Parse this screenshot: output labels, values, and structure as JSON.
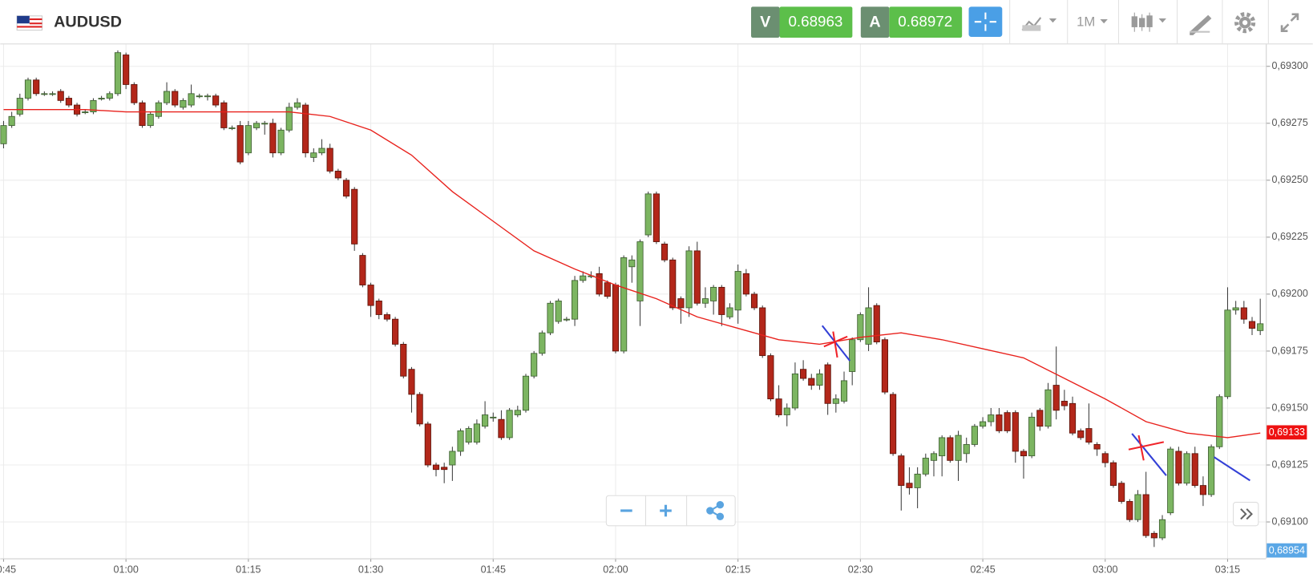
{
  "header": {
    "symbol": "AUDUSD",
    "sell_label": "V",
    "sell_price": "0.68963",
    "buy_label": "A",
    "buy_price": "0.68972",
    "timeframe": "1M"
  },
  "chart_data": {
    "type": "candlestick",
    "x": [
      "00:45",
      "00:46",
      "00:47",
      "00:48",
      "00:49",
      "00:50",
      "00:51",
      "00:52",
      "00:53",
      "00:54",
      "00:55",
      "00:56",
      "00:57",
      "00:58",
      "00:59",
      "01:00",
      "01:01",
      "01:02",
      "01:03",
      "01:04",
      "01:05",
      "01:06",
      "01:07",
      "01:08",
      "01:09",
      "01:10",
      "01:11",
      "01:12",
      "01:13",
      "01:14",
      "01:15",
      "01:16",
      "01:17",
      "01:18",
      "01:19",
      "01:20",
      "01:21",
      "01:22",
      "01:23",
      "01:24",
      "01:25",
      "01:26",
      "01:27",
      "01:28",
      "01:29",
      "01:30",
      "01:31",
      "01:32",
      "01:33",
      "01:34",
      "01:35",
      "01:36",
      "01:37",
      "01:38",
      "01:39",
      "01:40",
      "01:41",
      "01:42",
      "01:43",
      "01:44",
      "01:45",
      "01:46",
      "01:47",
      "01:48",
      "01:49",
      "01:50",
      "01:51",
      "01:52",
      "01:53",
      "01:54",
      "01:55",
      "01:56",
      "01:57",
      "01:58",
      "01:59",
      "02:00",
      "02:01",
      "02:02",
      "02:03",
      "02:04",
      "02:05",
      "02:06",
      "02:07",
      "02:08",
      "02:09",
      "02:10",
      "02:11",
      "02:12",
      "02:13",
      "02:14",
      "02:15",
      "02:16",
      "02:17",
      "02:18",
      "02:19",
      "02:20",
      "02:21",
      "02:22",
      "02:23",
      "02:24",
      "02:25",
      "02:26",
      "02:27",
      "02:28",
      "02:29",
      "02:30",
      "02:31",
      "02:32",
      "02:33",
      "02:34",
      "02:35",
      "02:36",
      "02:37",
      "02:38",
      "02:39",
      "02:40",
      "02:41",
      "02:42",
      "02:43",
      "02:44",
      "02:45",
      "02:46",
      "02:47",
      "02:48",
      "02:49",
      "02:50",
      "02:51",
      "02:52",
      "02:53",
      "02:54",
      "02:55",
      "02:56",
      "02:57",
      "02:58",
      "02:59",
      "03:00",
      "03:01",
      "03:02",
      "03:03",
      "03:04",
      "03:05",
      "03:06",
      "03:07",
      "03:08",
      "03:09",
      "03:10",
      "03:11",
      "03:12",
      "03:13",
      "03:14",
      "03:15",
      "03:16",
      "03:17",
      "03:18",
      "03:19"
    ],
    "ohlc": [
      [
        0.69266,
        0.69276,
        0.69264,
        0.69274
      ],
      [
        0.69274,
        0.6928,
        0.69273,
        0.69278
      ],
      [
        0.69279,
        0.69288,
        0.69278,
        0.69286
      ],
      [
        0.69286,
        0.69295,
        0.69285,
        0.69294
      ],
      [
        0.69294,
        0.69295,
        0.69287,
        0.69288
      ],
      [
        0.69288,
        0.69289,
        0.69287,
        0.69288
      ],
      [
        0.69288,
        0.69289,
        0.69287,
        0.69288
      ],
      [
        0.69289,
        0.6929,
        0.69284,
        0.69285
      ],
      [
        0.69286,
        0.69287,
        0.69282,
        0.69283
      ],
      [
        0.69283,
        0.69284,
        0.69278,
        0.69279
      ],
      [
        0.6928,
        0.69281,
        0.69279,
        0.6928
      ],
      [
        0.6928,
        0.69286,
        0.69279,
        0.69285
      ],
      [
        0.69286,
        0.69287,
        0.69285,
        0.69286
      ],
      [
        0.69286,
        0.69289,
        0.69285,
        0.69288
      ],
      [
        0.69288,
        0.69307,
        0.69287,
        0.69306
      ],
      [
        0.69305,
        0.69306,
        0.6929,
        0.69292
      ],
      [
        0.69292,
        0.69293,
        0.69283,
        0.69284
      ],
      [
        0.69284,
        0.69285,
        0.69273,
        0.69274
      ],
      [
        0.69274,
        0.6928,
        0.69273,
        0.69279
      ],
      [
        0.69278,
        0.69285,
        0.69277,
        0.69284
      ],
      [
        0.69284,
        0.69293,
        0.69283,
        0.69289
      ],
      [
        0.69289,
        0.6929,
        0.69282,
        0.69283
      ],
      [
        0.69282,
        0.69286,
        0.69281,
        0.69285
      ],
      [
        0.69283,
        0.69292,
        0.69282,
        0.69288
      ],
      [
        0.69287,
        0.69288,
        0.69286,
        0.69287
      ],
      [
        0.69287,
        0.69288,
        0.69285,
        0.69287
      ],
      [
        0.69287,
        0.69288,
        0.69282,
        0.69283
      ],
      [
        0.69284,
        0.69285,
        0.69272,
        0.69273
      ],
      [
        0.69273,
        0.69274,
        0.69272,
        0.69273
      ],
      [
        0.69274,
        0.69276,
        0.69257,
        0.69258
      ],
      [
        0.69262,
        0.69276,
        0.69261,
        0.69274
      ],
      [
        0.69273,
        0.69276,
        0.69272,
        0.69275
      ],
      [
        0.69275,
        0.69276,
        0.6927,
        0.69275
      ],
      [
        0.69275,
        0.69277,
        0.6926,
        0.69262
      ],
      [
        0.69262,
        0.69273,
        0.69261,
        0.69272
      ],
      [
        0.69272,
        0.69284,
        0.69271,
        0.69282
      ],
      [
        0.69282,
        0.69286,
        0.69281,
        0.69284
      ],
      [
        0.69283,
        0.69284,
        0.6926,
        0.69262
      ],
      [
        0.6926,
        0.69264,
        0.69258,
        0.69262
      ],
      [
        0.69262,
        0.69268,
        0.69261,
        0.69264
      ],
      [
        0.69264,
        0.69266,
        0.69253,
        0.69254
      ],
      [
        0.69254,
        0.69255,
        0.6925,
        0.69251
      ],
      [
        0.6925,
        0.69251,
        0.69242,
        0.69243
      ],
      [
        0.69246,
        0.69247,
        0.69219,
        0.69222
      ],
      [
        0.69217,
        0.69218,
        0.69203,
        0.69204
      ],
      [
        0.69204,
        0.69205,
        0.6919,
        0.69195
      ],
      [
        0.69197,
        0.69198,
        0.69189,
        0.69191
      ],
      [
        0.69191,
        0.69192,
        0.69188,
        0.69189
      ],
      [
        0.69189,
        0.6919,
        0.69177,
        0.69178
      ],
      [
        0.69178,
        0.69179,
        0.69163,
        0.69164
      ],
      [
        0.69167,
        0.69168,
        0.69148,
        0.69156
      ],
      [
        0.69156,
        0.69157,
        0.69142,
        0.69143
      ],
      [
        0.69143,
        0.69144,
        0.69124,
        0.69125
      ],
      [
        0.69125,
        0.69126,
        0.6912,
        0.69123
      ],
      [
        0.69124,
        0.69126,
        0.69117,
        0.69123
      ],
      [
        0.69125,
        0.69133,
        0.69118,
        0.69131
      ],
      [
        0.69131,
        0.69141,
        0.69129,
        0.6914
      ],
      [
        0.69135,
        0.69142,
        0.69134,
        0.69141
      ],
      [
        0.69135,
        0.69145,
        0.69134,
        0.69143
      ],
      [
        0.69142,
        0.69153,
        0.69141,
        0.69147
      ],
      [
        0.69146,
        0.69148,
        0.69144,
        0.69146
      ],
      [
        0.69145,
        0.69149,
        0.69136,
        0.69137
      ],
      [
        0.69137,
        0.6915,
        0.69136,
        0.69149
      ],
      [
        0.69147,
        0.69151,
        0.69146,
        0.69149
      ],
      [
        0.69149,
        0.69165,
        0.69148,
        0.69164
      ],
      [
        0.69164,
        0.69175,
        0.69163,
        0.69174
      ],
      [
        0.69174,
        0.69184,
        0.69173,
        0.69183
      ],
      [
        0.69183,
        0.69197,
        0.69182,
        0.69196
      ],
      [
        0.69188,
        0.69198,
        0.69187,
        0.69197
      ],
      [
        0.69189,
        0.6919,
        0.69188,
        0.69189
      ],
      [
        0.69189,
        0.69208,
        0.69186,
        0.69206
      ],
      [
        0.69206,
        0.6921,
        0.69205,
        0.69208
      ],
      [
        0.69208,
        0.6921,
        0.69207,
        0.69208
      ],
      [
        0.69209,
        0.69212,
        0.69199,
        0.692
      ],
      [
        0.69205,
        0.69206,
        0.69198,
        0.69199
      ],
      [
        0.69204,
        0.69205,
        0.69174,
        0.69175
      ],
      [
        0.69175,
        0.69217,
        0.69174,
        0.69216
      ],
      [
        0.69212,
        0.69217,
        0.69205,
        0.69215
      ],
      [
        0.69197,
        0.69224,
        0.69186,
        0.69223
      ],
      [
        0.69226,
        0.69245,
        0.69225,
        0.69244
      ],
      [
        0.69244,
        0.69245,
        0.69222,
        0.69223
      ],
      [
        0.69222,
        0.69223,
        0.69214,
        0.69215
      ],
      [
        0.69215,
        0.69216,
        0.69193,
        0.69194
      ],
      [
        0.69198,
        0.69199,
        0.69187,
        0.69194
      ],
      [
        0.69194,
        0.69221,
        0.6919,
        0.69219
      ],
      [
        0.69219,
        0.69223,
        0.69195,
        0.69196
      ],
      [
        0.69196,
        0.69203,
        0.69194,
        0.69198
      ],
      [
        0.69197,
        0.69204,
        0.69191,
        0.69203
      ],
      [
        0.69203,
        0.69204,
        0.69186,
        0.69191
      ],
      [
        0.6919,
        0.69196,
        0.69189,
        0.69194
      ],
      [
        0.69193,
        0.69213,
        0.69187,
        0.6921
      ],
      [
        0.69209,
        0.69211,
        0.69199,
        0.692
      ],
      [
        0.692,
        0.69201,
        0.69193,
        0.69194
      ],
      [
        0.69194,
        0.69195,
        0.69172,
        0.69173
      ],
      [
        0.69173,
        0.69174,
        0.69153,
        0.69154
      ],
      [
        0.69154,
        0.6916,
        0.69146,
        0.69147
      ],
      [
        0.69147,
        0.69152,
        0.69142,
        0.6915
      ],
      [
        0.6915,
        0.6917,
        0.69149,
        0.69165
      ],
      [
        0.69167,
        0.69171,
        0.69162,
        0.69163
      ],
      [
        0.69163,
        0.69165,
        0.69158,
        0.6916
      ],
      [
        0.6916,
        0.69167,
        0.69158,
        0.69165
      ],
      [
        0.69169,
        0.6917,
        0.69147,
        0.69152
      ],
      [
        0.69152,
        0.69156,
        0.69148,
        0.69154
      ],
      [
        0.69153,
        0.69166,
        0.69152,
        0.69162
      ],
      [
        0.69166,
        0.69181,
        0.6916,
        0.6918
      ],
      [
        0.6918,
        0.69192,
        0.69179,
        0.69191
      ],
      [
        0.69178,
        0.69203,
        0.69175,
        0.69194
      ],
      [
        0.69195,
        0.69196,
        0.69178,
        0.69179
      ],
      [
        0.6918,
        0.69181,
        0.69156,
        0.69157
      ],
      [
        0.69156,
        0.69157,
        0.69129,
        0.6913
      ],
      [
        0.69129,
        0.6913,
        0.69105,
        0.69116
      ],
      [
        0.69117,
        0.69124,
        0.69112,
        0.69115
      ],
      [
        0.69115,
        0.69124,
        0.69106,
        0.69121
      ],
      [
        0.69121,
        0.6913,
        0.6912,
        0.69128
      ],
      [
        0.69127,
        0.69131,
        0.6912,
        0.6913
      ],
      [
        0.69129,
        0.69138,
        0.6912,
        0.69137
      ],
      [
        0.69137,
        0.69138,
        0.69126,
        0.69127
      ],
      [
        0.69127,
        0.6914,
        0.69118,
        0.69138
      ],
      [
        0.6913,
        0.69137,
        0.69126,
        0.69134
      ],
      [
        0.69134,
        0.69143,
        0.69133,
        0.69142
      ],
      [
        0.69142,
        0.69146,
        0.69141,
        0.69144
      ],
      [
        0.69144,
        0.6915,
        0.69142,
        0.69147
      ],
      [
        0.69147,
        0.6915,
        0.69139,
        0.6914
      ],
      [
        0.69148,
        0.69149,
        0.69139,
        0.6914
      ],
      [
        0.69148,
        0.69149,
        0.69126,
        0.69131
      ],
      [
        0.69131,
        0.69132,
        0.69119,
        0.69129
      ],
      [
        0.69129,
        0.69148,
        0.69128,
        0.69146
      ],
      [
        0.69149,
        0.6915,
        0.6914,
        0.69142
      ],
      [
        0.69142,
        0.69161,
        0.69141,
        0.69158
      ],
      [
        0.6916,
        0.69177,
        0.69145,
        0.69149
      ],
      [
        0.69153,
        0.69158,
        0.69149,
        0.69151
      ],
      [
        0.69152,
        0.69155,
        0.69138,
        0.69139
      ],
      [
        0.6914,
        0.69141,
        0.69136,
        0.69137
      ],
      [
        0.69141,
        0.69152,
        0.69134,
        0.69135
      ],
      [
        0.69134,
        0.69135,
        0.69129,
        0.69132
      ],
      [
        0.6913,
        0.69131,
        0.69124,
        0.69126
      ],
      [
        0.69126,
        0.69127,
        0.69115,
        0.69116
      ],
      [
        0.69117,
        0.69118,
        0.69108,
        0.69109
      ],
      [
        0.69109,
        0.6911,
        0.691,
        0.69101
      ],
      [
        0.69101,
        0.69114,
        0.691,
        0.69112
      ],
      [
        0.69112,
        0.69122,
        0.69093,
        0.69094
      ],
      [
        0.69095,
        0.69096,
        0.69089,
        0.69093
      ],
      [
        0.69093,
        0.69103,
        0.69092,
        0.69101
      ],
      [
        0.69104,
        0.69133,
        0.69103,
        0.69132
      ],
      [
        0.69131,
        0.69133,
        0.69116,
        0.69117
      ],
      [
        0.69117,
        0.69131,
        0.69116,
        0.6913
      ],
      [
        0.6913,
        0.69133,
        0.69115,
        0.69116
      ],
      [
        0.69116,
        0.6912,
        0.69107,
        0.69112
      ],
      [
        0.69112,
        0.69134,
        0.69111,
        0.69133
      ],
      [
        0.69133,
        0.69156,
        0.69132,
        0.69155
      ],
      [
        0.69155,
        0.69203,
        0.69154,
        0.69193
      ],
      [
        0.69193,
        0.69197,
        0.69191,
        0.69194
      ],
      [
        0.69194,
        0.69197,
        0.69187,
        0.69189
      ],
      [
        0.69188,
        0.6919,
        0.69182,
        0.69185
      ],
      [
        0.69184,
        0.69198,
        0.69182,
        0.69187
      ]
    ],
    "up_color": "#7cb561",
    "down_color": "#b3271a",
    "ma": {
      "color": "#e8211c",
      "x": [
        "00:45",
        "00:50",
        "00:55",
        "01:00",
        "01:05",
        "01:10",
        "01:15",
        "01:20",
        "01:25",
        "01:30",
        "01:35",
        "01:40",
        "01:45",
        "01:50",
        "01:55",
        "02:00",
        "02:05",
        "02:10",
        "02:15",
        "02:20",
        "02:25",
        "02:30",
        "02:35",
        "02:40",
        "02:45",
        "02:50",
        "02:55",
        "03:00",
        "03:05",
        "03:10",
        "03:15",
        "03:19"
      ],
      "values": [
        0.69281,
        0.69281,
        0.69281,
        0.6928,
        0.6928,
        0.6928,
        0.6928,
        0.6928,
        0.69278,
        0.69272,
        0.69261,
        0.69245,
        0.69232,
        0.69219,
        0.69211,
        0.69204,
        0.69198,
        0.6919,
        0.69185,
        0.6918,
        0.69178,
        0.69181,
        0.69183,
        0.6918,
        0.69176,
        0.69172,
        0.69163,
        0.69154,
        0.69144,
        0.69139,
        0.69137,
        0.69139
      ]
    },
    "xlim": [
      "00:45",
      "03:20"
    ],
    "xticks": [
      "00:45",
      "01:00",
      "01:15",
      "01:30",
      "01:45",
      "02:00",
      "02:15",
      "02:30",
      "02:45",
      "03:00",
      "03:15"
    ],
    "ylim": [
      0.69084,
      0.6931
    ],
    "yticks": [
      {
        "value": 0.691,
        "label": "0,69100"
      },
      {
        "value": 0.69125,
        "label": "0,69125"
      },
      {
        "value": 0.6915,
        "label": "0,69150"
      },
      {
        "value": 0.69175,
        "label": "0,69175"
      },
      {
        "value": 0.692,
        "label": "0,69200"
      },
      {
        "value": 0.69225,
        "label": "0,69225"
      },
      {
        "value": 0.6925,
        "label": "0,69250"
      },
      {
        "value": 0.69275,
        "label": "0,69275"
      },
      {
        "value": 0.693,
        "label": "0,69300"
      }
    ],
    "grid": true,
    "annotations": [
      "0,69133",
      "0,68954"
    ]
  }
}
